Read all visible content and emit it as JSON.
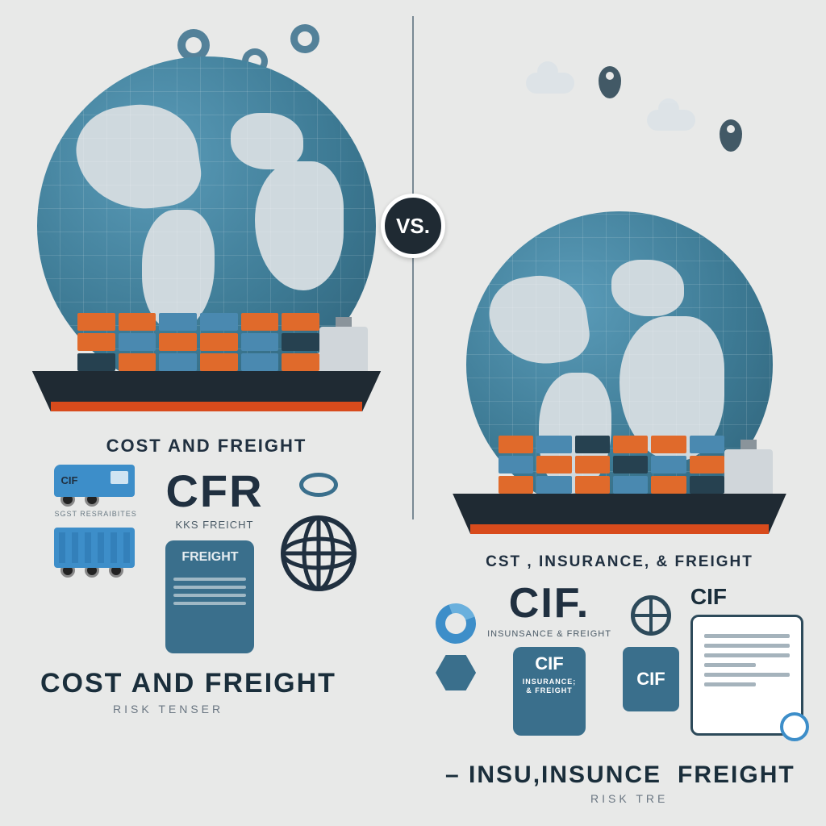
{
  "vs_label": "VS.",
  "colors": {
    "globe_base": "#3d7a94",
    "globe_light": "#5a9bb8",
    "globe_dark": "#2c5d73",
    "continent": "#cfd9de",
    "hull": "#1f2a33",
    "waterline": "#d84b1c",
    "container_orange": "#e06a2b",
    "container_blue": "#4a89b0",
    "container_navy": "#264150",
    "accent_blue": "#3d8ec9",
    "card_blue": "#3a6f8c",
    "text_dark": "#203040",
    "text_muted": "#6a7682",
    "background": "#e8e9e8"
  },
  "left": {
    "header_label": "COST AND FREIGHT",
    "abbr": "CFR",
    "abbr_sub": "KKS   FREICHT",
    "truck_badge": "CIF",
    "truck_small": "SGST  RESRAIBITES",
    "doc_label": "FREIGHT",
    "bottom_title": "COST AND FREIGHT",
    "risk_label": "RISK  TENSER",
    "containers": [
      [
        "#264150",
        "#e06a2b",
        "#e06a2b"
      ],
      [
        "#e06a2b",
        "#4a89b0",
        "#e06a2b"
      ],
      [
        "#4a89b0",
        "#e06a2b",
        "#4a89b0"
      ],
      [
        "#e06a2b",
        "#e06a2b",
        "#4a89b0"
      ],
      [
        "#4a89b0",
        "#4a89b0",
        "#e06a2b"
      ],
      [
        "#e06a2b",
        "#264150",
        "#e06a2b"
      ]
    ]
  },
  "right": {
    "header_label": "CST ,  INSURANCE, &  FREIGHT",
    "abbr": "CIF.",
    "abbr_sub": "INSUNSANCE & FREIGHT",
    "cif_box": "CIF",
    "big_cif": "CIF",
    "bottom_title_a": "– INSU,INSUNCE",
    "bottom_title_b": "FREIGHT",
    "risk_label": "RISK  TRE",
    "containers": [
      [
        "#e06a2b",
        "#4a89b0",
        "#e06a2b"
      ],
      [
        "#4a89b0",
        "#e06a2b",
        "#4a89b0"
      ],
      [
        "#e06a2b",
        "#e06a2b",
        "#264150"
      ],
      [
        "#4a89b0",
        "#264150",
        "#e06a2b"
      ],
      [
        "#e06a2b",
        "#4a89b0",
        "#e06a2b"
      ],
      [
        "#264150",
        "#e06a2b",
        "#4a89b0"
      ]
    ]
  }
}
